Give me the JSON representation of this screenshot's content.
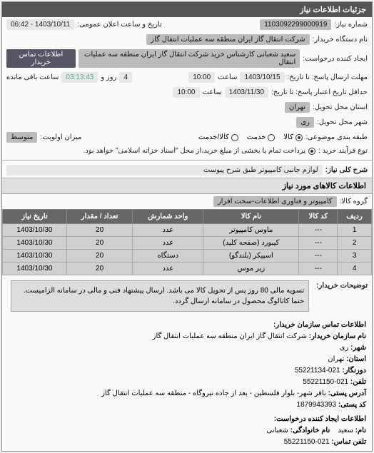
{
  "header": {
    "title": "جزئیات اطلاعات نیاز"
  },
  "top": {
    "need_no_label": "شماره نیاز:",
    "need_no": "1103092299000919",
    "announce_label": "تاریخ و ساعت اعلان عمومی:",
    "announce_value": "1403/10/11 - 06:42",
    "buyer_label": "نام دستگاه خریدار:",
    "buyer_value": "شرکت انتقال گاز ایران منطقه سه عملیات انتقال گاز",
    "creator_label": "ایجاد کننده درخواست:",
    "creator_value": "سعید شعبانی کارشناس خرید شرکت انتقال گاز ایران منطقه سه عملیات انتقال",
    "contact_btn": "اطلاعات تماس خریدار",
    "deadline_send_label": "مهلت ارسال پاسخ: تا تاریخ:",
    "deadline_send_date": "1403/10/15",
    "time_label": "ساعت",
    "deadline_send_time": "10:00",
    "days_remaining": "4",
    "days_remaining_unit": "روز و",
    "time_remaining": "03:13:43",
    "time_remaining_unit": "ساعت باقی مانده",
    "validity_label": "حداقل تاریخ اعتبار پاسخ: تا تاریخ:",
    "validity_date": "1403/11/30",
    "validity_time": "10:00",
    "province_label": "استان محل تحویل:",
    "province_value": "تهران",
    "city_label": "شهر محل تحویل:",
    "city_value": "ری",
    "subject_type_label": "طبقه بندی موضوعی:",
    "subject_goods": "کالا",
    "subject_service": "خدمت",
    "subject_both": "کالا/خدمت",
    "priority_label": "میزان اولویت:",
    "priority_value": "متوسط",
    "buy_type_label": "نوع فرآیند خرید :",
    "buy_type_note": "پرداخت تمام یا بخشی از مبلغ خرید،از محل \"اسناد خزانه اسلامی\" خواهد بود."
  },
  "need": {
    "title_label": "شرح کلی نیاز:",
    "title_value": "لوازم جانبی کامپیوتر طبق شرح پیوست"
  },
  "goods_section": {
    "title": "اطلاعات کالاهای مورد نیاز",
    "group_label": "گروه کالا:",
    "group_value": "کامپیوتر و فناوری اطلاعات-سخت افزار",
    "columns": [
      "ردیف",
      "کد کالا",
      "نام کالا",
      "واحد شمارش",
      "تعداد / مقدار",
      "تاریخ نیاز"
    ],
    "rows": [
      [
        "1",
        "---",
        "ماوس کامپیوتر",
        "عدد",
        "20",
        "1403/10/30"
      ],
      [
        "2",
        "---",
        "کیبورد (صفحه کلید)",
        "عدد",
        "20",
        "1403/10/30"
      ],
      [
        "3",
        "---",
        "اسپیکر (بلندگو)",
        "دستگاه",
        "20",
        "1403/10/30"
      ],
      [
        "4",
        "---",
        "زیر موس",
        "عدد",
        "20",
        "1403/10/30"
      ]
    ]
  },
  "notes": {
    "label": "توضیحات خریدار:",
    "text": "تسویه مالی 80 روز پس از تحویل کالا می باشد. ارسال پیشنهاد فنی و مالی در سامانه الزامیست. حتما کاتالوگ محصول در سامانه ارسال گردد."
  },
  "footer": {
    "title": "اطلاعات تماس سازمان خریدار:",
    "org_label": "نام سازمان خریدار:",
    "org_value": "شرکت انتقال گاز ایران منطقه سه عملیات انتقال گاز",
    "city_label": "شهر:",
    "city_value": "ری",
    "province_label": "استان:",
    "province_value": "تهران",
    "fax_label": "دورنگار:",
    "fax_value": "021-55221134",
    "phone_label": "تلفن:",
    "phone_value": "021-55221150",
    "address_label": "آدرس پستی:",
    "address_value": "باقر شهر- بلوار فلسطین - بعد از جاده نیروگاه - منطقه سه عملیات انتقال گاز",
    "postal_label": "کد پستی:",
    "postal_value": "1879943393",
    "creator_title": "اطلاعات ایجاد کننده درخواست:",
    "name_label": "نام:",
    "name_value": "سعید",
    "family_label": "نام خانوادگی:",
    "family_value": "شعبانی",
    "contact_phone_label": "تلفن تماس:",
    "contact_phone_value": "021-55221150"
  }
}
